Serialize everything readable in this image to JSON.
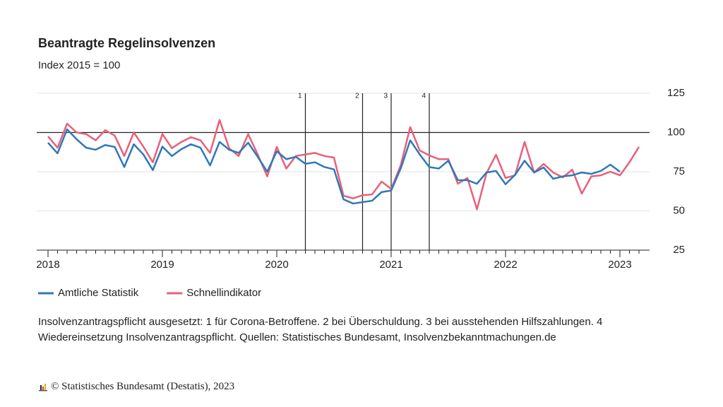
{
  "chart_data": {
    "type": "line",
    "title": "Beantragte Regelinsolvenzen",
    "subtitle": "Index 2015 = 100",
    "categories": [
      "2018",
      null,
      null,
      null,
      null,
      null,
      null,
      null,
      null,
      null,
      null,
      null,
      "2019",
      null,
      null,
      null,
      null,
      null,
      null,
      null,
      null,
      null,
      null,
      null,
      "2020",
      null,
      null,
      null,
      null,
      null,
      null,
      null,
      null,
      null,
      null,
      null,
      "2021",
      null,
      null,
      null,
      null,
      null,
      null,
      null,
      null,
      null,
      null,
      null,
      "2022",
      null,
      null,
      null,
      null,
      null,
      null,
      null,
      null,
      null,
      null,
      null,
      "2023",
      null,
      null
    ],
    "series": [
      {
        "name": "Amtliche Statistik",
        "color": "#2f78b8",
        "values": [
          93.5,
          86.7,
          102,
          95.7,
          90.3,
          89,
          92,
          90.8,
          78,
          92.5,
          86,
          76,
          91,
          85,
          89.4,
          92.5,
          90.3,
          79,
          94,
          89,
          87,
          93.5,
          84.5,
          75,
          88,
          83,
          84.5,
          80,
          81,
          78,
          76.5,
          57.4,
          54.7,
          55.6,
          56.5,
          62,
          63,
          77,
          95,
          86,
          78,
          77,
          82,
          69.6,
          69.6,
          67.3,
          74.5,
          75.5,
          67,
          73,
          82,
          74.5,
          77.7,
          70.5,
          72,
          72.7,
          74.5,
          73.6,
          75.5,
          79.5,
          75,
          null,
          null
        ]
      },
      {
        "name": "Schnellindikator",
        "color": "#e8607a",
        "values": [
          97.5,
          90.3,
          105.6,
          100,
          99,
          95,
          101.5,
          98,
          85,
          100,
          91,
          81,
          99,
          90,
          94,
          97,
          95,
          87,
          108,
          90,
          85,
          99,
          86,
          72,
          90.8,
          77,
          85,
          86,
          87,
          85,
          84,
          59.7,
          58,
          60,
          60.5,
          68.7,
          64,
          79,
          103.4,
          88.5,
          85.4,
          83,
          83,
          67.3,
          71,
          51,
          74,
          85.8,
          71,
          72.7,
          94,
          74.5,
          80,
          74.5,
          71.4,
          76.3,
          61,
          72,
          72.7,
          75,
          72.7,
          81,
          90.8
        ]
      }
    ],
    "ylim": [
      25,
      125
    ],
    "yticks": [
      25,
      50,
      75,
      100,
      125
    ],
    "grid": true,
    "reference_line": 100,
    "annotations": [
      {
        "text": "1",
        "index": 27
      },
      {
        "text": "2",
        "index": 33
      },
      {
        "text": "3",
        "index": 36
      },
      {
        "text": "4",
        "index": 40
      }
    ],
    "footnote": "Insolvenzantragspflicht ausgesetzt: 1 für Corona-Betroffene. 2 bei Überschuldung. 3 bei ausstehenden Hilfszahlungen. 4 Wiedereinsetzung Insolvenzantragspflicht. Quellen: Statistisches Bundesamt, Insolvenzbekanntmachungen.de",
    "copyright": "© Statistisches Bundesamt (Destatis), 2023"
  }
}
